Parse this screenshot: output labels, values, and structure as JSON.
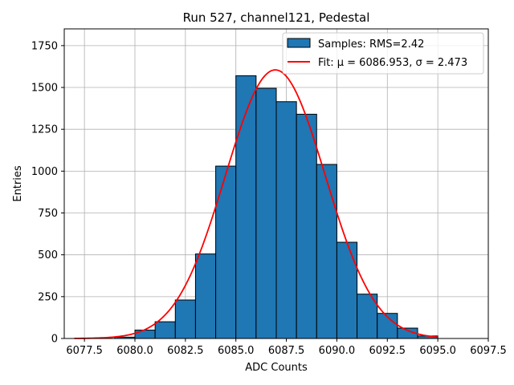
{
  "chart_data": {
    "type": "bar",
    "title": "Run 527, channel121, Pedestal",
    "xlabel": "ADC Counts",
    "ylabel": "Entries",
    "xlim": [
      6076.5,
      6097.5
    ],
    "ylim": [
      0,
      1850
    ],
    "xticks": [
      6077.5,
      6080.0,
      6082.5,
      6085.0,
      6087.5,
      6090.0,
      6092.5,
      6095.0,
      6097.5
    ],
    "xtick_labels": [
      "6077.5",
      "6080.0",
      "6082.5",
      "6085.0",
      "6087.5",
      "6090.0",
      "6092.5",
      "6095.0",
      "6097.5"
    ],
    "yticks": [
      0,
      250,
      500,
      750,
      1000,
      1250,
      1500,
      1750
    ],
    "ytick_labels": [
      "0",
      "250",
      "500",
      "750",
      "1000",
      "1250",
      "1500",
      "1750"
    ],
    "grid": true,
    "bar_color": "#1f77b4",
    "bar_edge_color": "#000000",
    "fit_color": "#ff0000",
    "bins": [
      {
        "left": 6079,
        "right": 6080,
        "value": 8
      },
      {
        "left": 6080,
        "right": 6081,
        "value": 50
      },
      {
        "left": 6081,
        "right": 6082,
        "value": 100
      },
      {
        "left": 6082,
        "right": 6083,
        "value": 230
      },
      {
        "left": 6083,
        "right": 6084,
        "value": 505
      },
      {
        "left": 6084,
        "right": 6085,
        "value": 1030
      },
      {
        "left": 6085,
        "right": 6086,
        "value": 1570
      },
      {
        "left": 6086,
        "right": 6087,
        "value": 1495
      },
      {
        "left": 6087,
        "right": 6088,
        "value": 1415
      },
      {
        "left": 6088,
        "right": 6089,
        "value": 1340
      },
      {
        "left": 6089,
        "right": 6090,
        "value": 1040
      },
      {
        "left": 6090,
        "right": 6091,
        "value": 575
      },
      {
        "left": 6091,
        "right": 6092,
        "value": 265
      },
      {
        "left": 6092,
        "right": 6093,
        "value": 150
      },
      {
        "left": 6093,
        "right": 6094,
        "value": 62
      },
      {
        "left": 6094,
        "right": 6095,
        "value": 15
      }
    ],
    "fit": {
      "mu": 6086.953,
      "sigma": 2.473,
      "amplitude": 1605,
      "x_range": [
        6077.0,
        6095.0
      ]
    },
    "legend": {
      "position": "top-right",
      "entries": [
        "Samples: RMS=2.42",
        "Fit: μ = 6086.953, σ = 2.473"
      ]
    }
  }
}
